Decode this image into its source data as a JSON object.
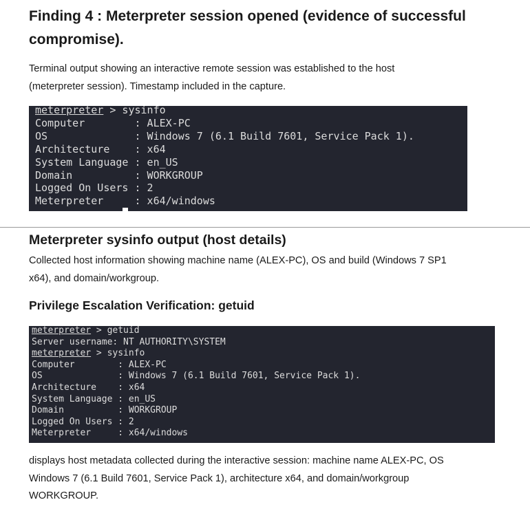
{
  "finding": {
    "title_lines": [
      "Finding 4 : Meterpreter session opened (evidence of successful",
      "compromise)."
    ],
    "description_lines": [
      "Terminal output showing an interactive remote session was established to the host",
      "(meterpreter session). Timestamp included in the capture."
    ],
    "terminal": [
      {
        "prompt": "meterpreter",
        "text": " > sysinfo"
      },
      {
        "text": "Computer        : ALEX-PC"
      },
      {
        "text": "OS              : Windows 7 (6.1 Build 7601, Service Pack 1)."
      },
      {
        "text": "Architecture    : x64"
      },
      {
        "text": "System Language : en_US"
      },
      {
        "text": "Domain          : WORKGROUP"
      },
      {
        "text": "Logged On Users : 2"
      },
      {
        "text": "Meterpreter     : x64/windows"
      }
    ]
  },
  "sysinfo": {
    "title": "Meterpreter sysinfo output (host details)",
    "description_lines": [
      "Collected host information showing machine name (ALEX-PC), OS and build (Windows 7 SP1",
      "x64), and domain/workgroup."
    ]
  },
  "privilege": {
    "title": "Privilege Escalation Verification: getuid",
    "terminal": [
      {
        "prompt": "meterpreter",
        "text": " > getuid"
      },
      {
        "text": "Server username: NT AUTHORITY\\SYSTEM"
      },
      {
        "prompt": "meterpreter",
        "text": " > sysinfo"
      },
      {
        "text": "Computer        : ALEX-PC"
      },
      {
        "text": "OS              : Windows 7 (6.1 Build 7601, Service Pack 1)."
      },
      {
        "text": "Architecture    : x64"
      },
      {
        "text": "System Language : en_US"
      },
      {
        "text": "Domain          : WORKGROUP"
      },
      {
        "text": "Logged On Users : 2"
      },
      {
        "text": "Meterpreter     : x64/windows"
      }
    ],
    "description_lines": [
      "displays host metadata collected during the interactive session: machine name ALEX-PC, OS",
      "Windows 7 (6.1 Build 7601, Service Pack 1), architecture x64, and domain/workgroup",
      "WORKGROUP."
    ]
  }
}
